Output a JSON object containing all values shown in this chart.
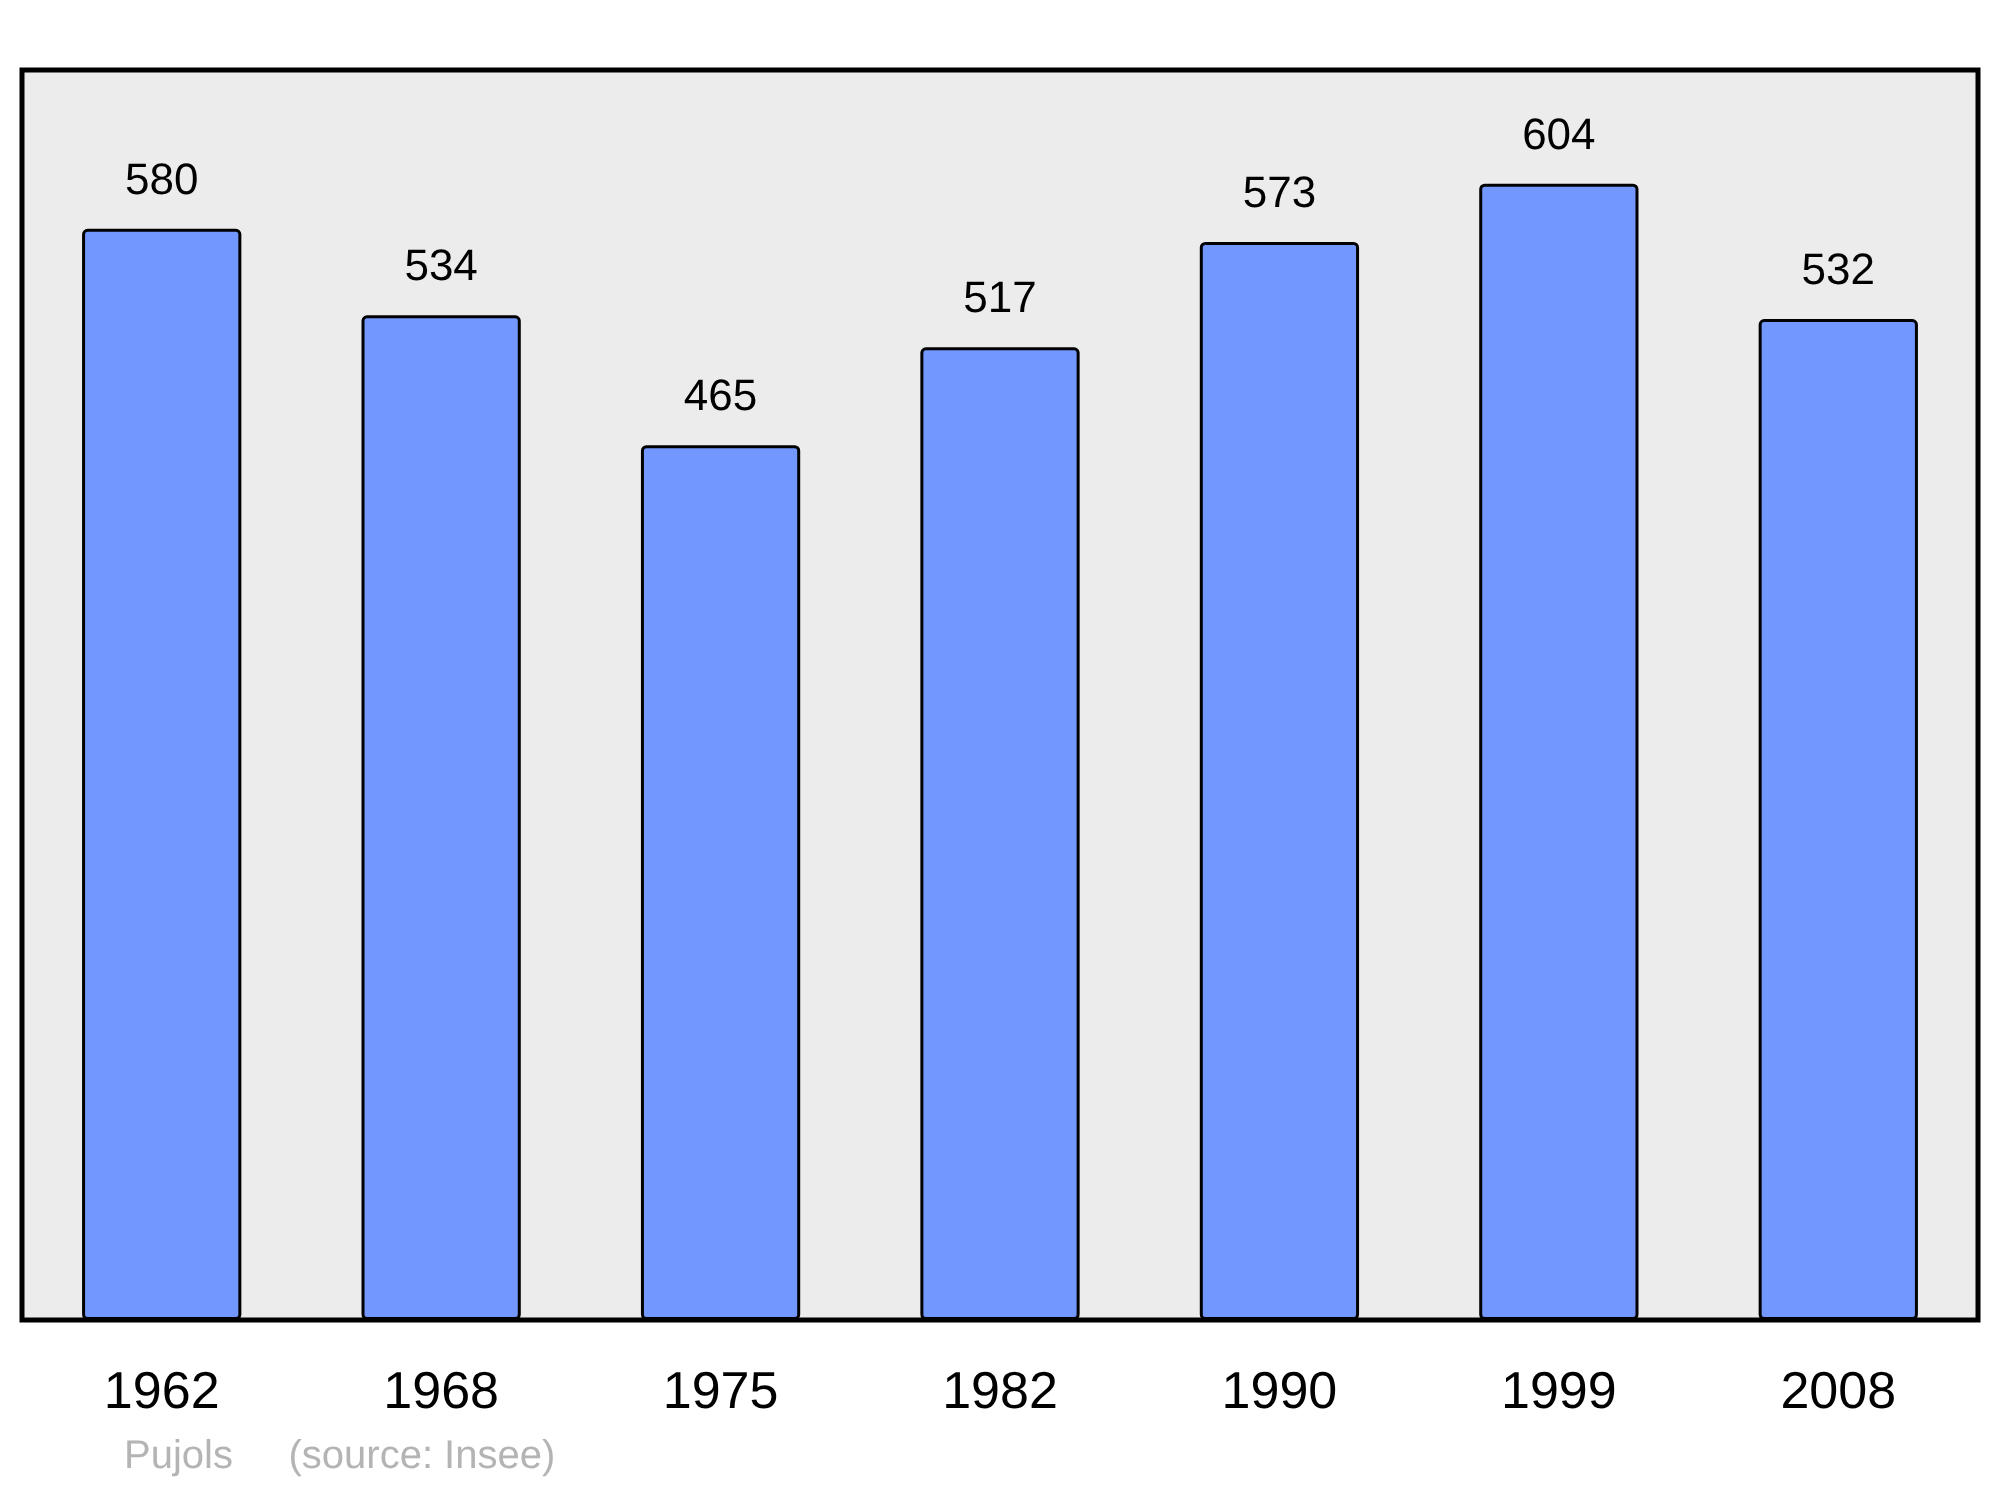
{
  "chart_data": {
    "type": "bar",
    "categories": [
      "1962",
      "1968",
      "1975",
      "1982",
      "1990",
      "1999",
      "2008"
    ],
    "values": [
      580,
      534,
      465,
      517,
      573,
      604,
      532
    ],
    "color": "#7298ff",
    "data_labels": true,
    "annotations": [
      "Pujols",
      "(source: Insee)"
    ]
  }
}
